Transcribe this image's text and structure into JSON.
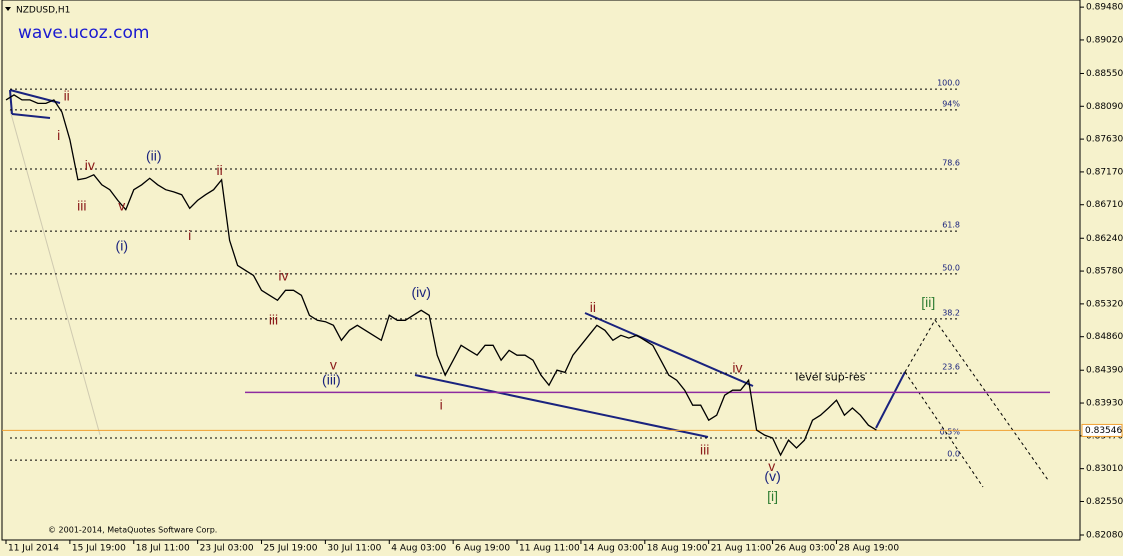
{
  "chart_data": {
    "type": "line",
    "title": "NZDUSD,H1",
    "subtitle": "wave.ucoz.com",
    "footer": "© 2001-2014, MetaQuotes Software Corp.",
    "color": "#000000",
    "values": [
      0.8818,
      0.8825,
      0.8818,
      0.8818,
      0.8813,
      0.8813,
      0.8818,
      0.8801,
      0.8762,
      0.8706,
      0.8708,
      0.8713,
      0.8699,
      0.8692,
      0.8677,
      0.8664,
      0.8692,
      0.8699,
      0.8708,
      0.8699,
      0.8692,
      0.8689,
      0.8685,
      0.8666,
      0.8677,
      0.8685,
      0.8692,
      0.8706,
      0.8621,
      0.8586,
      0.8579,
      0.8572,
      0.8551,
      0.8544,
      0.8537,
      0.8551,
      0.8551,
      0.8544,
      0.8516,
      0.8509,
      0.8507,
      0.8502,
      0.8481,
      0.8495,
      0.8502,
      0.8495,
      0.8488,
      0.8481,
      0.8516,
      0.8509,
      0.8509,
      0.8516,
      0.8523,
      0.8516,
      0.846,
      0.8432,
      0.8453,
      0.8474,
      0.8467,
      0.846,
      0.8474,
      0.8474,
      0.8453,
      0.8467,
      0.846,
      0.846,
      0.8453,
      0.8432,
      0.8418,
      0.8439,
      0.8436,
      0.846,
      0.8474,
      0.8488,
      0.8502,
      0.8495,
      0.8481,
      0.8488,
      0.8484,
      0.8488,
      0.8481,
      0.8474,
      0.8453,
      0.8432,
      0.8425,
      0.8411,
      0.839,
      0.839,
      0.8369,
      0.8376,
      0.8404,
      0.8411,
      0.8411,
      0.8425,
      0.8355,
      0.8348,
      0.8344,
      0.832,
      0.8341,
      0.833,
      0.8341,
      0.8369,
      0.8376,
      0.8386,
      0.8397,
      0.8376,
      0.8386,
      0.8376,
      0.8362,
      0.8355
    ],
    "xlim": [
      -0.5,
      134.5
    ],
    "xticks": [
      {
        "value": 0,
        "label": "11 Jul 2014"
      },
      {
        "value": 8,
        "label": "15 Jul 19:00"
      },
      {
        "value": 16,
        "label": "18 Jul 11:00"
      },
      {
        "value": 24,
        "label": "23 Jul 03:00"
      },
      {
        "value": 32,
        "label": "25 Jul 19:00"
      },
      {
        "value": 40,
        "label": "30 Jul 11:00"
      },
      {
        "value": 48,
        "label": "4 Aug 03:00"
      },
      {
        "value": 56,
        "label": "6 Aug 19:00"
      },
      {
        "value": 64,
        "label": "11 Aug 11:00"
      },
      {
        "value": 72,
        "label": "14 Aug 03:00"
      },
      {
        "value": 80,
        "label": "18 Aug 19:00"
      },
      {
        "value": 88,
        "label": "21 Aug 11:00"
      },
      {
        "value": 96,
        "label": "26 Aug 03:00"
      },
      {
        "value": 104,
        "label": "28 Aug 19:00"
      }
    ],
    "ylim": [
      0.8201,
      0.8958
    ],
    "yticks": [
      {
        "value": 0.8948,
        "label": "0.89480"
      },
      {
        "value": 0.8902,
        "label": "0.89020"
      },
      {
        "value": 0.8855,
        "label": "0.88550"
      },
      {
        "value": 0.8809,
        "label": "0.88090"
      },
      {
        "value": 0.8763,
        "label": "0.87630"
      },
      {
        "value": 0.8717,
        "label": "0.87170"
      },
      {
        "value": 0.8671,
        "label": "0.86710"
      },
      {
        "value": 0.8624,
        "label": "0.86240"
      },
      {
        "value": 0.8578,
        "label": "0.85780"
      },
      {
        "value": 0.8532,
        "label": "0.85320"
      },
      {
        "value": 0.8486,
        "label": "0.84860"
      },
      {
        "value": 0.8439,
        "label": "0.84390"
      },
      {
        "value": 0.8393,
        "label": "0.83930"
      },
      {
        "value": 0.8347,
        "label": "0.83470"
      },
      {
        "value": 0.8301,
        "label": "0.83010"
      },
      {
        "value": 0.8255,
        "label": "0.82550"
      },
      {
        "value": 0.8208,
        "label": "0.82080"
      }
    ],
    "current_price": {
      "value": 0.83546,
      "label": "0.83546",
      "color": "#f0a030"
    },
    "fib_levels": [
      {
        "label": "100.0",
        "price": 0.8833
      },
      {
        "label": "94%",
        "price": 0.8804
      },
      {
        "label": "78.6",
        "price": 0.8721
      },
      {
        "label": "61.8",
        "price": 0.8634
      },
      {
        "label": "50.0",
        "price": 0.8574
      },
      {
        "label": "38.2",
        "price": 0.8511
      },
      {
        "label": "23.6",
        "price": 0.8435
      },
      {
        "label": "0.5%",
        "price": 0.8344
      },
      {
        "label": "0.0",
        "price": 0.8313
      }
    ],
    "support_line": {
      "label": "level sup-res",
      "price": 0.8408,
      "color": "#8e2ca0",
      "label_index": 103.25,
      "label_price": 0.8429
    },
    "wave_labels": [
      {
        "text": "ii",
        "index": 7.6,
        "price": 0.8822,
        "color": "#8b1a1a"
      },
      {
        "text": "i",
        "index": 6.6,
        "price": 0.8767,
        "color": "#8b1a1a"
      },
      {
        "text": "iv",
        "index": 10.5,
        "price": 0.8725,
        "color": "#8b1a1a"
      },
      {
        "text": "iii",
        "index": 9.5,
        "price": 0.8668,
        "color": "#8b1a1a"
      },
      {
        "text": "v",
        "index": 14.5,
        "price": 0.8668,
        "color": "#8b1a1a"
      },
      {
        "text": "(i)",
        "index": 14.5,
        "price": 0.8612,
        "color": "#1a237e"
      },
      {
        "text": "(ii)",
        "index": 18.5,
        "price": 0.8738,
        "color": "#1a237e"
      },
      {
        "text": "i",
        "index": 23,
        "price": 0.8627,
        "color": "#8b1a1a"
      },
      {
        "text": "ii",
        "index": 26.75,
        "price": 0.8718,
        "color": "#8b1a1a"
      },
      {
        "text": "iv",
        "index": 34.75,
        "price": 0.857,
        "color": "#8b1a1a"
      },
      {
        "text": "iii",
        "index": 33.5,
        "price": 0.8508,
        "color": "#8b1a1a"
      },
      {
        "text": "v",
        "index": 41,
        "price": 0.8445,
        "color": "#8b1a1a"
      },
      {
        "text": "(iii)",
        "index": 40.75,
        "price": 0.8424,
        "color": "#1a237e"
      },
      {
        "text": "(iv)",
        "index": 52,
        "price": 0.8547,
        "color": "#1a237e"
      },
      {
        "text": "i",
        "index": 54.5,
        "price": 0.8389,
        "color": "#8b1a1a"
      },
      {
        "text": "ii",
        "index": 73.5,
        "price": 0.8526,
        "color": "#8b1a1a"
      },
      {
        "text": "iii",
        "index": 87.5,
        "price": 0.8326,
        "color": "#8b1a1a"
      },
      {
        "text": "iv",
        "index": 91.6,
        "price": 0.8441,
        "color": "#8b1a1a"
      },
      {
        "text": "v",
        "index": 95.9,
        "price": 0.8303,
        "color": "#8b1a1a"
      },
      {
        "text": "(v)",
        "index": 96,
        "price": 0.8289,
        "color": "#1a237e"
      },
      {
        "text": "[i]",
        "index": 96,
        "price": 0.8261,
        "color": "#2e7d32"
      },
      {
        "text": "[ii]",
        "index": 115.5,
        "price": 0.8533,
        "color": "#2e7d32"
      }
    ]
  }
}
